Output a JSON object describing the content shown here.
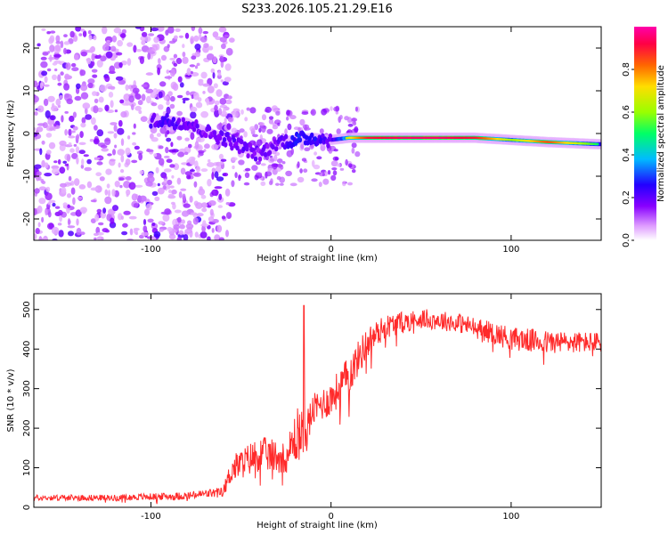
{
  "title": "S233.2026.105.21.29.E16",
  "chart_data": [
    {
      "type": "heatmap",
      "title": "S233.2026.105.21.29.E16",
      "xlabel": "Height of straight line (km)",
      "ylabel": "Frequency (Hz)",
      "xlim": [
        -165,
        150
      ],
      "ylim": [
        -25,
        25
      ],
      "xticks": [
        -100,
        0,
        100
      ],
      "yticks": [
        -20,
        -10,
        0,
        10,
        20
      ],
      "colorbar": {
        "label": "Normalized spectral amplitude",
        "range": [
          0,
          1
        ],
        "ticks": [
          "0.0",
          "0.2",
          "0.4",
          "0.6",
          "0.8"
        ],
        "colors": [
          "#ffffff",
          "#cc99ff",
          "#7a00ff",
          "#0000ff",
          "#00ccff",
          "#00ff66",
          "#aaff00",
          "#ffcc00",
          "#ff3300",
          "#ff0066"
        ]
      },
      "ridge": {
        "description": "strong narrow-band signal near 0 Hz",
        "x": [
          -100,
          -90,
          -80,
          -70,
          -60,
          -50,
          -40,
          -30,
          -20,
          -10,
          0,
          10,
          20,
          40,
          60,
          80,
          100,
          120,
          148
        ],
        "freq": [
          3,
          3,
          2.5,
          0.5,
          -1,
          -3,
          -5,
          -2,
          -1.5,
          -1,
          -1.5,
          -1,
          -1,
          -1,
          -1,
          -1,
          -1.5,
          -2,
          -2.5
        ],
        "amplitude": [
          0.35,
          0.4,
          0.35,
          0.3,
          0.35,
          0.35,
          0.3,
          0.3,
          0.5,
          0.45,
          0.35,
          0.7,
          0.9,
          0.95,
          0.95,
          0.9,
          0.6,
          0.85,
          0.5
        ]
      }
    },
    {
      "type": "line",
      "xlabel": "Height of straight line (km)",
      "ylabel": "SNR (10 * v/v)",
      "xlim": [
        -165,
        150
      ],
      "ylim": [
        0,
        540
      ],
      "xticks": [
        -100,
        0,
        100
      ],
      "yticks": [
        0,
        100,
        200,
        300,
        400,
        500
      ],
      "color": "#ff2a2a",
      "trend": {
        "x": [
          -165,
          -120,
          -80,
          -60,
          -55,
          -40,
          -25,
          -18,
          -15,
          -10,
          0,
          10,
          20,
          30,
          50,
          70,
          100,
          120,
          150
        ],
        "snr": [
          25,
          25,
          30,
          40,
          100,
          140,
          130,
          200,
          180,
          250,
          280,
          340,
          420,
          460,
          480,
          470,
          430,
          420,
          420
        ],
        "spread": [
          15,
          15,
          20,
          25,
          70,
          90,
          80,
          150,
          120,
          80,
          90,
          100,
          80,
          60,
          50,
          50,
          60,
          60,
          50
        ]
      }
    }
  ]
}
